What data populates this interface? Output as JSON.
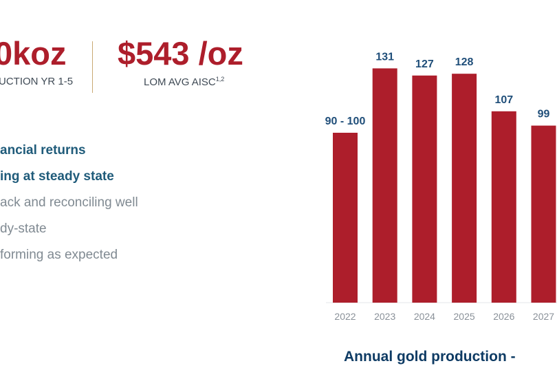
{
  "highlights": {
    "production": {
      "value": "0koz",
      "label": "UCTION YR 1-5"
    },
    "aisc": {
      "value": "$543 /oz",
      "label": "LOM AVG AISC",
      "footnote": "1,2"
    }
  },
  "bullets": [
    {
      "text": "ancial returns",
      "style": "strong"
    },
    {
      "text": "ing at steady state",
      "style": "strong"
    },
    {
      "text": "ack and reconciling well",
      "style": "muted"
    },
    {
      "text": "dy-state",
      "style": "muted"
    },
    {
      "text": "forming as expected",
      "style": "muted"
    }
  ],
  "chart_data": {
    "type": "bar",
    "title": "Annual gold production -",
    "categories": [
      "2022",
      "2023",
      "2024",
      "2025",
      "2026",
      "2027"
    ],
    "values": [
      95,
      131,
      127,
      128,
      107,
      99
    ],
    "data_labels": [
      "90 - 100",
      "131",
      "127",
      "128",
      "107",
      "99"
    ],
    "ylim": [
      0,
      140
    ],
    "grid": false,
    "colors": {
      "bar": "#ad1e2b",
      "label": "#1f4e79",
      "tick": "#8a9199",
      "axis": "#e3e6ea"
    }
  }
}
